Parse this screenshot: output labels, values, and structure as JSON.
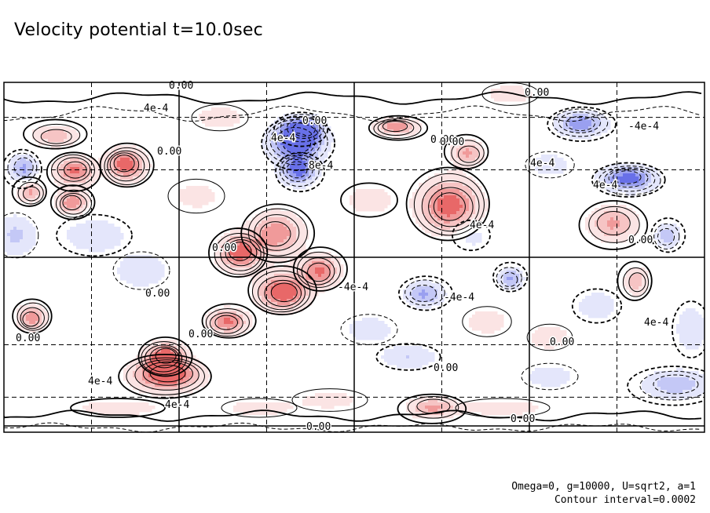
{
  "title": "Velocity potential t=10.0sec",
  "notes": {
    "params": "Omega=0, g=10000, U=sqrt2, a=1",
    "interval": "Contour interval=0.0002"
  },
  "colors": {
    "positive": "#e03030",
    "negative": "#3040e0",
    "frame": "#000000"
  },
  "chart_data": {
    "type": "heatmap",
    "title": "Velocity potential t=10.0sec",
    "contour_interval": 0.0002,
    "grid": "dashed",
    "contour_labels": [
      {
        "text": "0.00"
      },
      {
        "text": "4e-4"
      },
      {
        "text": "0.00"
      },
      {
        "text": "4e-4"
      },
      {
        "text": "8e-4"
      },
      {
        "text": "0.00"
      },
      {
        "text": "0.00"
      },
      {
        "text": "0.00"
      },
      {
        "text": "-4e-4"
      },
      {
        "text": "4e-4"
      },
      {
        "text": "0.00"
      },
      {
        "text": "4e-4"
      },
      {
        "text": "-4e-4"
      },
      {
        "text": "0.00"
      },
      {
        "text": "0.00"
      },
      {
        "text": "-4e-4"
      },
      {
        "text": "0.00"
      },
      {
        "text": "4e-4"
      },
      {
        "text": "4e-4"
      },
      {
        "text": "0.00"
      },
      {
        "text": "0.00"
      },
      {
        "text": "0.00"
      },
      {
        "text": "4e-4"
      },
      {
        "text": "0.00"
      },
      {
        "text": "4e-4"
      },
      {
        "text": "0.00"
      },
      {
        "text": "0.00"
      }
    ],
    "extrema": [
      {
        "sign": "positive",
        "strength": 0.5
      },
      {
        "sign": "positive",
        "strength": 0.8
      },
      {
        "sign": "positive",
        "strength": 0.9
      },
      {
        "sign": "positive",
        "strength": 0.7
      },
      {
        "sign": "positive",
        "strength": 0.6
      },
      {
        "sign": "negative",
        "strength": 1.0
      },
      {
        "sign": "negative",
        "strength": 0.8
      },
      {
        "sign": "positive",
        "strength": 0.9
      },
      {
        "sign": "positive",
        "strength": 1.0
      },
      {
        "sign": "positive",
        "strength": 0.8
      },
      {
        "sign": "positive",
        "strength": 0.7
      },
      {
        "sign": "positive",
        "strength": 1.0
      },
      {
        "sign": "positive",
        "strength": 0.9
      },
      {
        "sign": "positive",
        "strength": 0.8
      },
      {
        "sign": "positive",
        "strength": 0.7
      },
      {
        "sign": "negative",
        "strength": 0.8
      },
      {
        "sign": "negative",
        "strength": 0.6
      },
      {
        "sign": "positive",
        "strength": 0.7
      },
      {
        "sign": "positive",
        "strength": 0.9
      },
      {
        "sign": "positive",
        "strength": 0.6
      },
      {
        "sign": "negative",
        "strength": 0.7
      },
      {
        "sign": "negative",
        "strength": 0.9
      },
      {
        "sign": "positive",
        "strength": 0.6
      },
      {
        "sign": "positive",
        "strength": 0.5
      },
      {
        "sign": "negative",
        "strength": 0.6
      },
      {
        "sign": "negative",
        "strength": 0.6
      },
      {
        "sign": "positive",
        "strength": 0.6
      },
      {
        "sign": "negative",
        "strength": 0.5
      },
      {
        "sign": "negative",
        "strength": 0.5
      }
    ]
  }
}
